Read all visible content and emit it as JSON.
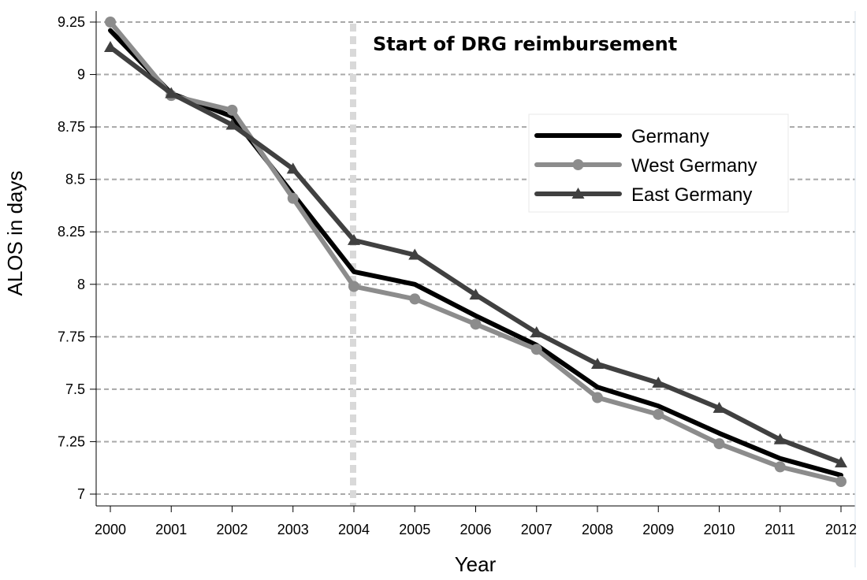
{
  "chart_data": {
    "type": "line",
    "title": "",
    "xlabel": "Year",
    "ylabel": "ALOS in days",
    "x": [
      "2000",
      "2001",
      "2002",
      "2003",
      "2004",
      "2005",
      "2006",
      "2007",
      "2008",
      "2009",
      "2010",
      "2011",
      "2012"
    ],
    "ylim": [
      7,
      9.25
    ],
    "yticks": [
      "7",
      "7.25",
      "7.5",
      "7.75",
      "8",
      "8.25",
      "8.5",
      "8.75",
      "9",
      "9.25"
    ],
    "grid": true,
    "legend_position": "upper-right",
    "annotation": {
      "text": "Start of DRG reimbursement",
      "x": "2004"
    },
    "series": [
      {
        "name": "Germany",
        "color": "#000000",
        "marker": "none",
        "values": [
          9.21,
          8.91,
          8.8,
          8.43,
          8.06,
          8.0,
          7.85,
          7.71,
          7.51,
          7.42,
          7.29,
          7.17,
          7.09
        ]
      },
      {
        "name": "West Germany",
        "color": "#8c8c8c",
        "marker": "circle",
        "values": [
          9.25,
          8.9,
          8.83,
          8.41,
          7.99,
          7.93,
          7.81,
          7.69,
          7.46,
          7.38,
          7.24,
          7.13,
          7.06
        ]
      },
      {
        "name": "East Germany",
        "color": "#404040",
        "marker": "triangle",
        "values": [
          9.13,
          8.91,
          8.76,
          8.55,
          8.21,
          8.14,
          7.95,
          7.77,
          7.62,
          7.53,
          7.41,
          7.26,
          7.15
        ]
      }
    ]
  }
}
